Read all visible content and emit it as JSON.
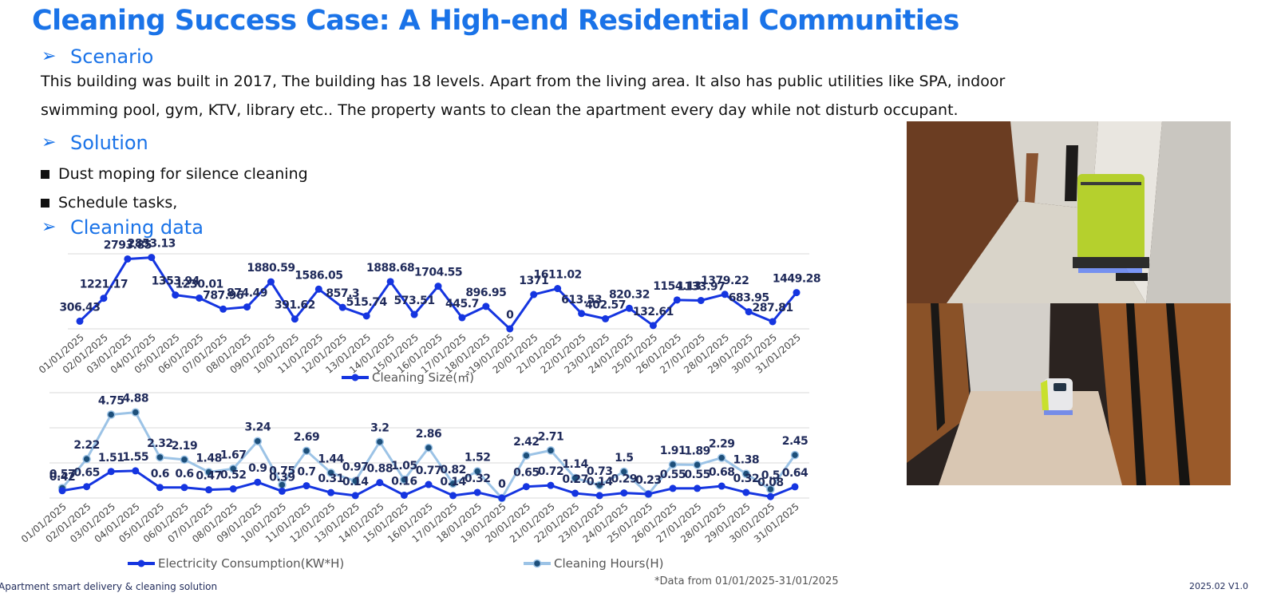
{
  "page": {
    "title": "Cleaning Success Case: A High-end Residential Communities",
    "scenario_heading": "Scenario",
    "scenario_text": "This building was built in 2017, The building has 18 levels. Apart from the living area. It also has public utilities like SPA, indoor swimming pool, gym, KTV, library etc.. The property wants to clean the apartment every day while not disturb occupant.",
    "solution_heading": "Solution",
    "bullets": [
      "Dust moping for silence cleaning",
      "Schedule tasks,"
    ],
    "data_heading": "Cleaning data",
    "footer_left": "Apartment smart delivery & cleaning solution",
    "footer_note": "*Data from 01/01/2025-31/01/2025",
    "footer_right": "2025.02  V1.0",
    "arrow_glyph": "➢"
  },
  "colors": {
    "accent": "#1a73e8",
    "series_dark": "#1535e0",
    "series_light": "#9cc3e6",
    "label": "#1f2a5a",
    "grid": "#d9d9d9"
  },
  "chart_data": [
    {
      "type": "line",
      "categories": [
        "01/01/2025",
        "02/01/2025",
        "03/01/2025",
        "04/01/2025",
        "05/01/2025",
        "06/01/2025",
        "07/01/2025",
        "08/01/2025",
        "09/01/2025",
        "10/01/2025",
        "11/01/2025",
        "12/01/2025",
        "13/01/2025",
        "14/01/2025",
        "15/01/2025",
        "16/01/2025",
        "17/01/2025",
        "18/01/2025",
        "19/01/2025",
        "20/01/2025",
        "21/01/2025",
        "22/01/2025",
        "23/01/2025",
        "24/01/2025",
        "25/01/2025",
        "26/01/2025",
        "27/01/2025",
        "28/01/2025",
        "29/01/2025",
        "30/01/2025",
        "31/01/2025"
      ],
      "series": [
        {
          "name": "Cleaning Size(㎡)",
          "values": [
            306.43,
            1221.17,
            2793.85,
            2853.13,
            1353.94,
            1230.01,
            787.96,
            874.49,
            1880.59,
            391.62,
            1586.05,
            857.3,
            515.74,
            1888.68,
            573.51,
            1704.55,
            445.7,
            896.95,
            0,
            1371,
            1611.02,
            613.53,
            402.57,
            820.32,
            132.61,
            1154.13,
            1133.97,
            1379.22,
            683.95,
            287.81,
            1449.28
          ]
        }
      ],
      "ylim": [
        0,
        3000
      ],
      "legend": "bottom"
    },
    {
      "type": "line",
      "categories": [
        "01/01/2025",
        "02/01/2025",
        "03/01/2025",
        "04/01/2025",
        "05/01/2025",
        "06/01/2025",
        "07/01/2025",
        "08/01/2025",
        "09/01/2025",
        "10/01/2025",
        "11/01/2025",
        "12/01/2025",
        "13/01/2025",
        "14/01/2025",
        "15/01/2025",
        "16/01/2025",
        "17/01/2025",
        "18/01/2025",
        "19/01/2025",
        "20/01/2025",
        "21/01/2025",
        "22/01/2025",
        "23/01/2025",
        "24/01/2025",
        "25/01/2025",
        "26/01/2025",
        "27/01/2025",
        "28/01/2025",
        "29/01/2025",
        "30/01/2025",
        "31/01/2025"
      ],
      "series": [
        {
          "name": "Electricity Consumption(KW*H)",
          "values": [
            0.42,
            0.65,
            1.51,
            1.55,
            0.6,
            0.6,
            0.47,
            0.52,
            0.9,
            0.39,
            0.7,
            0.31,
            0.14,
            0.88,
            0.16,
            0.77,
            0.14,
            0.32,
            0,
            0.65,
            0.72,
            0.27,
            0.14,
            0.29,
            0.23,
            0.55,
            0.55,
            0.68,
            0.32,
            0.08,
            0.64
          ]
        },
        {
          "name": "Cleaning Hours(H)",
          "values": [
            0.57,
            2.22,
            4.75,
            4.88,
            2.32,
            2.19,
            1.48,
            1.67,
            3.24,
            0.75,
            2.69,
            1.44,
            0.97,
            3.2,
            1.05,
            2.86,
            0.82,
            1.52,
            0,
            2.42,
            2.71,
            1.14,
            0.73,
            1.5,
            0.23,
            1.91,
            1.89,
            2.29,
            1.38,
            0.5,
            2.45
          ]
        }
      ],
      "ylim": [
        0,
        6
      ],
      "legend": "bottom"
    }
  ]
}
